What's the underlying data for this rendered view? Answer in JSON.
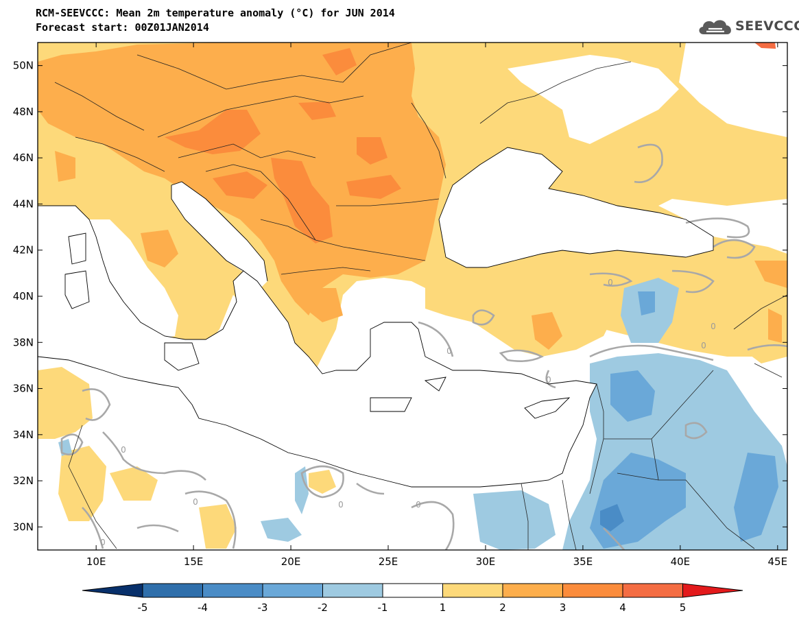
{
  "title_line1": "RCM-SEEVCCC: Mean 2m temperature anomaly (°C) for JUN 2014",
  "title_line2": "Forecast start: 00Z01JAN2014",
  "logo_text": "SEEVCCC",
  "map": {
    "lat_labels": [
      "50N",
      "48N",
      "46N",
      "44N",
      "42N",
      "40N",
      "38N",
      "36N",
      "34N",
      "32N",
      "30N"
    ],
    "lat_values": [
      50,
      48,
      46,
      44,
      42,
      40,
      38,
      36,
      34,
      32,
      30
    ],
    "lon_labels": [
      "10E",
      "15E",
      "20E",
      "25E",
      "30E",
      "35E",
      "40E",
      "45E"
    ],
    "lon_values": [
      10,
      15,
      20,
      25,
      30,
      35,
      40,
      45
    ],
    "lon_range": [
      7,
      45.5
    ],
    "lat_range": [
      29,
      51
    ],
    "contour_labels": [
      "0",
      "0",
      "0",
      "0",
      "0",
      "0",
      "0",
      "0",
      "0",
      "0"
    ]
  },
  "colorbar": {
    "levels": [
      "-5",
      "-4",
      "-3",
      "-2",
      "-1",
      "1",
      "2",
      "3",
      "4",
      "5"
    ],
    "colors": [
      "#08306b",
      "#2f6fab",
      "#4a8cc6",
      "#6aa8d8",
      "#9ecae1",
      "#ffffff",
      "#fdd97a",
      "#fdae4c",
      "#fb8c3c",
      "#f46d43",
      "#e31a1c"
    ]
  }
}
